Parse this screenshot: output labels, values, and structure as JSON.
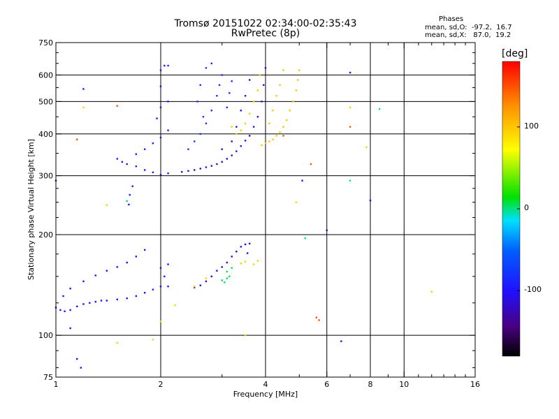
{
  "header": {
    "title_line1": "Tromsø 20151022 02:34:00-02:35:43",
    "title_line2": "RwPretec (8p)",
    "phases_label": "Phases",
    "o_stats": "mean, sd,O:  -97.2,  16.7",
    "x_stats": "mean, sd,X:   87.0,  19.2"
  },
  "colorbar": {
    "unit": "[deg]",
    "ticks": [
      {
        "value": 100,
        "label": "100"
      },
      {
        "value": 0,
        "label": "0"
      },
      {
        "value": -100,
        "label": "-100"
      }
    ],
    "range": [
      -180,
      180
    ]
  },
  "chart_data": {
    "type": "scatter",
    "xlabel": "Frequency [MHz]",
    "ylabel": "Stationary phase Virtual Height [km]",
    "x_scale": "log",
    "y_scale": "log",
    "xlim": [
      1,
      16
    ],
    "ylim": [
      75,
      750
    ],
    "x_ticks": [
      {
        "value": 1,
        "label": "1"
      },
      {
        "value": 2,
        "label": "2"
      },
      {
        "value": 4,
        "label": "4"
      },
      {
        "value": 6,
        "label": "6"
      },
      {
        "value": 8,
        "label": "8"
      },
      {
        "value": 10,
        "label": "10"
      },
      {
        "value": 16,
        "label": "16"
      }
    ],
    "x_minor_ticks": [
      3,
      5,
      7,
      9,
      11,
      12,
      13,
      14,
      15
    ],
    "x_grid": [
      2,
      4,
      6,
      8,
      10
    ],
    "y_ticks": [
      {
        "value": 75,
        "label": "75"
      },
      {
        "value": 100,
        "label": "100"
      },
      {
        "value": 200,
        "label": "200"
      },
      {
        "value": 300,
        "label": "300"
      },
      {
        "value": 400,
        "label": "400"
      },
      {
        "value": 500,
        "label": "500"
      },
      {
        "value": 600,
        "label": "600"
      },
      {
        "value": 750,
        "label": "750"
      }
    ],
    "y_minor_ticks": [
      80,
      90,
      125,
      150,
      175,
      225,
      250,
      275,
      350,
      450,
      550,
      650,
      700
    ],
    "y_grid": [
      100,
      200,
      300,
      400,
      500,
      600
    ],
    "series": [
      {
        "phase": -100,
        "points": [
          [
            1.0,
            121
          ],
          [
            1.03,
            119
          ],
          [
            1.06,
            118
          ],
          [
            1.1,
            119
          ],
          [
            1.15,
            122
          ],
          [
            1.2,
            124
          ],
          [
            1.25,
            125
          ],
          [
            1.3,
            126
          ],
          [
            1.35,
            127
          ],
          [
            1.4,
            127
          ],
          [
            1.5,
            128
          ],
          [
            1.6,
            129
          ],
          [
            1.7,
            131
          ],
          [
            1.8,
            134
          ],
          [
            1.9,
            137
          ],
          [
            2.0,
            140
          ],
          [
            2.1,
            140
          ],
          [
            1.05,
            131
          ],
          [
            1.1,
            138
          ],
          [
            1.2,
            145
          ],
          [
            1.3,
            151
          ],
          [
            1.4,
            156
          ],
          [
            1.5,
            160
          ],
          [
            1.6,
            165
          ],
          [
            1.7,
            172
          ],
          [
            1.8,
            180
          ],
          [
            2.0,
            159
          ],
          [
            2.1,
            163
          ],
          [
            2.05,
            150
          ],
          [
            1.62,
            246
          ],
          [
            1.63,
            263
          ],
          [
            1.66,
            279
          ]
        ]
      },
      {
        "phase": -115,
        "points": [
          [
            2.5,
            139
          ],
          [
            2.6,
            141
          ],
          [
            2.7,
            145
          ],
          [
            2.8,
            150
          ],
          [
            2.9,
            156
          ],
          [
            3.0,
            160
          ],
          [
            3.1,
            165
          ],
          [
            3.2,
            172
          ],
          [
            3.3,
            178
          ],
          [
            3.4,
            184
          ],
          [
            3.5,
            187
          ],
          [
            3.6,
            188
          ],
          [
            3.55,
            176
          ]
        ]
      },
      {
        "phase": 5,
        "points": [
          [
            3.0,
            146
          ],
          [
            3.05,
            144
          ],
          [
            3.1,
            148
          ],
          [
            3.1,
            155
          ],
          [
            3.2,
            159
          ],
          [
            3.15,
            150
          ]
        ]
      },
      {
        "phase": 95,
        "points": [
          [
            3.4,
            164
          ],
          [
            3.5,
            166
          ],
          [
            3.7,
            163
          ],
          [
            3.8,
            167
          ],
          [
            2.0,
            110
          ],
          [
            2.2,
            123
          ],
          [
            2.5,
            140
          ],
          [
            3.5,
            100
          ],
          [
            2.7,
            148
          ]
        ]
      },
      {
        "phase": -95,
        "points": [
          [
            1.55,
            330
          ],
          [
            1.6,
            325
          ],
          [
            1.7,
            320
          ],
          [
            1.8,
            312
          ],
          [
            1.9,
            307
          ],
          [
            2.0,
            302
          ],
          [
            2.1,
            305
          ],
          [
            1.5,
            337
          ],
          [
            1.7,
            348
          ],
          [
            1.8,
            360
          ],
          [
            1.9,
            375
          ],
          [
            2.0,
            390
          ],
          [
            2.1,
            410
          ],
          [
            1.95,
            445
          ],
          [
            2.0,
            480
          ],
          [
            2.1,
            500
          ],
          [
            2.0,
            620
          ],
          [
            2.05,
            640
          ],
          [
            2.1,
            640
          ]
        ]
      },
      {
        "phase": -115,
        "points": [
          [
            2.3,
            308
          ],
          [
            2.4,
            310
          ],
          [
            2.5,
            312
          ],
          [
            2.6,
            315
          ],
          [
            2.7,
            318
          ],
          [
            2.8,
            321
          ],
          [
            2.9,
            325
          ],
          [
            3.0,
            330
          ],
          [
            3.1,
            337
          ],
          [
            3.2,
            345
          ],
          [
            3.3,
            355
          ],
          [
            3.4,
            368
          ],
          [
            3.5,
            382
          ],
          [
            3.6,
            395
          ],
          [
            3.7,
            420
          ],
          [
            3.8,
            450
          ],
          [
            3.9,
            500
          ],
          [
            3.95,
            560
          ],
          [
            4.0,
            630
          ],
          [
            3.0,
            360
          ],
          [
            3.2,
            380
          ],
          [
            3.3,
            420
          ],
          [
            3.4,
            470
          ],
          [
            3.5,
            520
          ],
          [
            3.6,
            580
          ]
        ]
      },
      {
        "phase": -80,
        "points": [
          [
            2.4,
            360
          ],
          [
            2.5,
            380
          ],
          [
            2.6,
            400
          ],
          [
            2.7,
            430
          ],
          [
            2.8,
            470
          ],
          [
            2.9,
            520
          ],
          [
            2.95,
            560
          ],
          [
            3.0,
            600
          ],
          [
            2.7,
            630
          ],
          [
            2.8,
            650
          ],
          [
            2.6,
            560
          ],
          [
            2.55,
            500
          ],
          [
            2.65,
            450
          ],
          [
            3.1,
            480
          ],
          [
            3.15,
            530
          ],
          [
            3.2,
            575
          ]
        ]
      },
      {
        "phase": 100,
        "points": [
          [
            3.9,
            370
          ],
          [
            4.0,
            375
          ],
          [
            4.1,
            380
          ],
          [
            4.2,
            385
          ],
          [
            4.3,
            395
          ],
          [
            4.4,
            405
          ],
          [
            4.5,
            420
          ],
          [
            4.6,
            440
          ],
          [
            4.7,
            470
          ],
          [
            4.8,
            500
          ],
          [
            4.9,
            540
          ],
          [
            4.95,
            580
          ],
          [
            5.0,
            620
          ],
          [
            4.1,
            430
          ],
          [
            4.2,
            470
          ],
          [
            4.3,
            520
          ],
          [
            4.4,
            560
          ],
          [
            4.5,
            620
          ],
          [
            3.4,
            410
          ],
          [
            3.5,
            430
          ],
          [
            3.6,
            460
          ],
          [
            3.7,
            500
          ],
          [
            3.8,
            540
          ],
          [
            3.85,
            600
          ],
          [
            3.3,
            400
          ],
          [
            3.2,
            420
          ]
        ]
      },
      {
        "phase": -100,
        "points": [
          [
            1.1,
            105
          ],
          [
            1.15,
            85
          ],
          [
            1.18,
            80
          ],
          [
            6.0,
            206
          ],
          [
            8.0,
            253
          ],
          [
            6.6,
            96
          ],
          [
            5.1,
            290
          ],
          [
            7.0,
            610
          ],
          [
            1.2,
            545
          ],
          [
            1.0,
            290
          ],
          [
            2.0,
            555
          ]
        ]
      },
      {
        "phase": 95,
        "points": [
          [
            1.5,
            95
          ],
          [
            1.9,
            97
          ],
          [
            12,
            135
          ],
          [
            7.0,
            480
          ],
          [
            7.8,
            365
          ],
          [
            4.9,
            250
          ],
          [
            1.2,
            480
          ],
          [
            1.4,
            245
          ]
        ]
      },
      {
        "phase": 150,
        "points": [
          [
            5.6,
            113
          ],
          [
            5.7,
            111
          ],
          [
            7.0,
            420
          ],
          [
            5.4,
            325
          ],
          [
            4.5,
            395
          ],
          [
            1.15,
            385
          ],
          [
            1.5,
            485
          ]
        ]
      },
      {
        "phase": 0,
        "points": [
          [
            8.5,
            475
          ],
          [
            7.0,
            290
          ],
          [
            1.6,
            252
          ],
          [
            5.2,
            195
          ]
        ]
      }
    ]
  }
}
